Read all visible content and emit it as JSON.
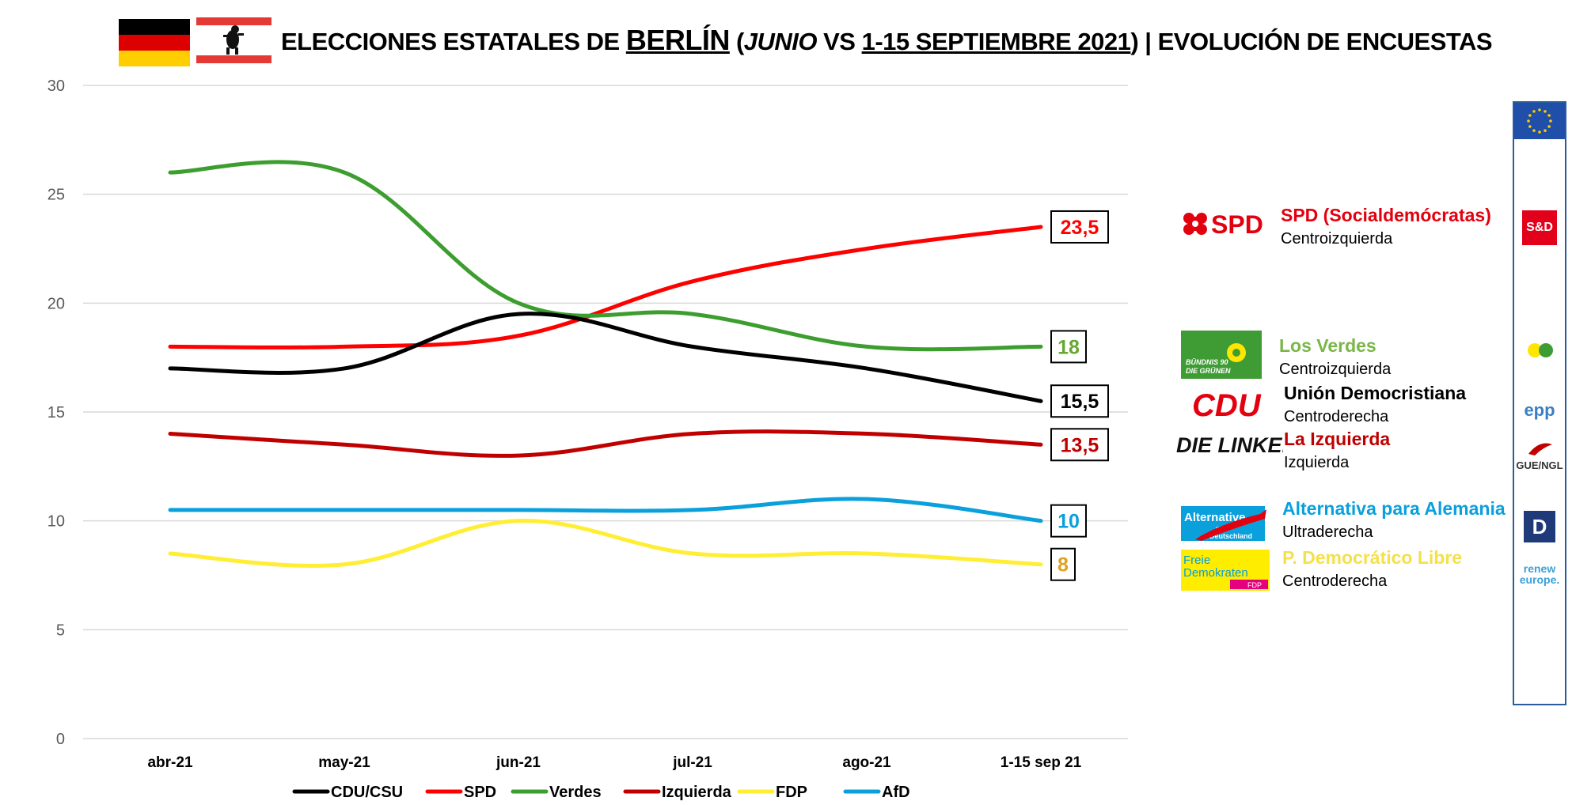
{
  "header": {
    "title_part1": "ELECCIONES ESTATALES DE ",
    "title_city": "BERLÍN",
    "title_part2": " (",
    "title_month": "JUNIO",
    "title_part3": " VS ",
    "title_period": "1-15 SEPTIEMBRE 2021",
    "title_part4": ") | EVOLUCIÓN DE ENCUESTAS"
  },
  "chart_data": {
    "type": "line",
    "title": "ELECCIONES ESTATALES DE BERLÍN (JUNIO VS 1-15 SEPTIEMBRE 2021) | EVOLUCIÓN DE ENCUESTAS",
    "categories": [
      "abr-21",
      "may-21",
      "jun-21",
      "jul-21",
      "ago-21",
      "1-15 sep 21"
    ],
    "ylim": [
      0,
      30
    ],
    "yticks": [
      0,
      5,
      10,
      15,
      20,
      25,
      30
    ],
    "grid": true,
    "legend_position": "bottom",
    "series": [
      {
        "name": "CDU/CSU",
        "color": "#000000",
        "values": [
          17,
          17,
          19.5,
          18,
          17,
          15.5
        ],
        "end_label": "15,5",
        "label_color": "#000000"
      },
      {
        "name": "SPD",
        "color": "#ff0000",
        "values": [
          18,
          18,
          18.5,
          21,
          22.5,
          23.5
        ],
        "end_label": "23,5",
        "label_color": "#ff0000"
      },
      {
        "name": "Verdes",
        "color": "#3c9e2e",
        "values": [
          26,
          26,
          20,
          19.5,
          18,
          18
        ],
        "end_label": "18",
        "label_color": "#66a832"
      },
      {
        "name": "Izquierda",
        "color": "#c00000",
        "values": [
          14,
          13.5,
          13,
          14,
          14,
          13.5
        ],
        "end_label": "13,5",
        "label_color": "#c00000"
      },
      {
        "name": "FDP",
        "color": "#ffee33",
        "values": [
          8.5,
          8,
          10,
          8.5,
          8.5,
          8
        ],
        "end_label": "8",
        "label_color": "#e0a020"
      },
      {
        "name": "AfD",
        "color": "#0aa0dc",
        "values": [
          10.5,
          10.5,
          10.5,
          10.5,
          11,
          10
        ],
        "end_label": "10",
        "label_color": "#0aa0dc"
      }
    ]
  },
  "parties": [
    {
      "logo": "SPD",
      "name": "SPD (Socialdemócratas)",
      "orientation": "Centroizquierda",
      "color": "#e3000f"
    },
    {
      "logo": "BÜNDNIS 90 DIE GRÜNEN",
      "name": "Los Verdes",
      "orientation": "Centroizquierda",
      "color": "#7ab648"
    },
    {
      "logo": "CDU",
      "name": "Unión Democristiana",
      "orientation": "Centroderecha",
      "color": "#000000"
    },
    {
      "logo": "DIE LINKE.",
      "name": "La Izquierda",
      "orientation": "Izquierda",
      "color": "#c00000"
    },
    {
      "logo": "Alternative für Deutschland",
      "name": "Alternativa para Alemania",
      "orientation": "Ultraderecha",
      "color": "#0aa0dc"
    },
    {
      "logo": "Freie Demokraten FDP",
      "name": "P. Democrático Libre",
      "orientation": "Centroderecha",
      "color": "#f5e04a"
    }
  ],
  "eu_groups": {
    "sd": "S&D",
    "epp": "epp",
    "gue": "GUE/NGL",
    "renew": "renew europe."
  },
  "colors": {
    "grid": "#d9d9d9",
    "axis_text": "#595959"
  }
}
